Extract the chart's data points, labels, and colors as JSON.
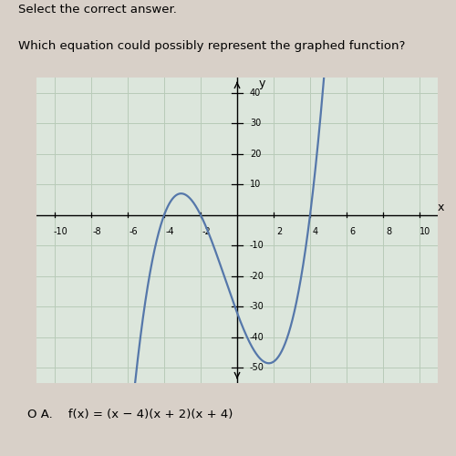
{
  "roots": [
    -4,
    -2,
    4
  ],
  "xlim": [
    -11,
    11
  ],
  "ylim": [
    -55,
    45
  ],
  "xticks": [
    -10,
    -8,
    -6,
    -4,
    -2,
    2,
    4,
    6,
    8,
    10
  ],
  "yticks": [
    -50,
    -40,
    -30,
    -20,
    -10,
    10,
    20,
    30,
    40
  ],
  "curve_color": "#5577aa",
  "grid_color": "#b8cbb8",
  "bg_color": "#dce6dc",
  "fig_bg_color": "#d8d0c8",
  "curve_linewidth": 1.6,
  "xlabel": "x",
  "ylabel": "y",
  "top_text1": "Select the correct answer.",
  "top_text2": "Which equation could possibly represent the graphed function?",
  "answer": "O A.    f(x) = (x − 4)(x + 2)(x + 4)"
}
